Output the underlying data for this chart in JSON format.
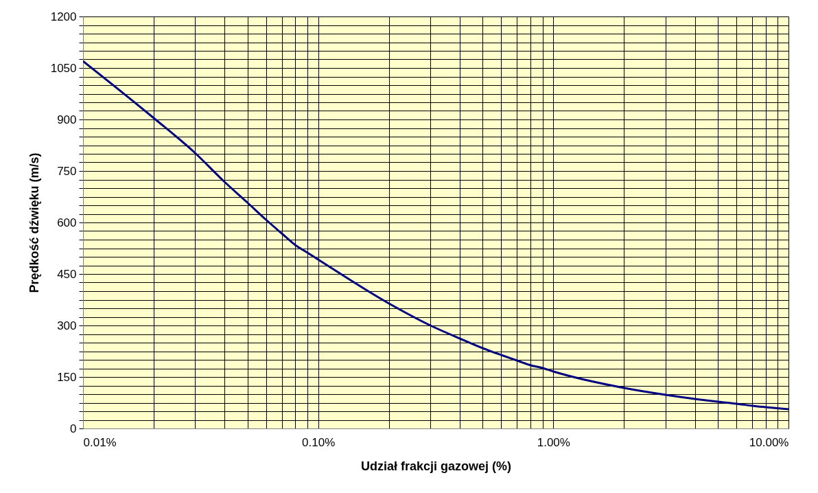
{
  "chart_data": {
    "type": "line",
    "xlabel": "Udział frakcji gazowej (%)",
    "ylabel": "Prędkość dźwięku (m/s)",
    "log": "x",
    "grid": true,
    "legend": false,
    "marker": "none",
    "line_style": "solid",
    "xlim": [
      0.01,
      10
    ],
    "ylim": [
      0,
      1200
    ],
    "xticks": [
      {
        "value": 0.01,
        "label": "0.01%"
      },
      {
        "value": 0.02,
        "label": null
      },
      {
        "value": 0.03,
        "label": null
      },
      {
        "value": 0.04,
        "label": null
      },
      {
        "value": 0.05,
        "label": null
      },
      {
        "value": 0.06,
        "label": null
      },
      {
        "value": 0.07,
        "label": null
      },
      {
        "value": 0.08,
        "label": null
      },
      {
        "value": 0.09,
        "label": null
      },
      {
        "value": 0.1,
        "label": "0.10%"
      },
      {
        "value": 0.2,
        "label": null
      },
      {
        "value": 0.3,
        "label": null
      },
      {
        "value": 0.4,
        "label": null
      },
      {
        "value": 0.5,
        "label": null
      },
      {
        "value": 0.6,
        "label": null
      },
      {
        "value": 0.7,
        "label": null
      },
      {
        "value": 0.8,
        "label": null
      },
      {
        "value": 0.9,
        "label": null
      },
      {
        "value": 1,
        "label": "1.00%"
      },
      {
        "value": 2,
        "label": null
      },
      {
        "value": 3,
        "label": null
      },
      {
        "value": 4,
        "label": null
      },
      {
        "value": 5,
        "label": null
      },
      {
        "value": 6,
        "label": null
      },
      {
        "value": 7,
        "label": null
      },
      {
        "value": 8,
        "label": null
      },
      {
        "value": 9,
        "label": null
      },
      {
        "value": 10,
        "label": "10.00%"
      }
    ],
    "yticks": [
      0,
      {
        "value": 25,
        "label": null
      },
      {
        "value": 50,
        "label": null
      },
      {
        "value": 75,
        "label": null
      },
      {
        "value": 100,
        "label": null
      },
      {
        "value": 125,
        "label": null
      },
      150,
      {
        "value": 175,
        "label": null
      },
      {
        "value": 200,
        "label": null
      },
      {
        "value": 225,
        "label": null
      },
      {
        "value": 250,
        "label": null
      },
      {
        "value": 275,
        "label": null
      },
      300,
      {
        "value": 325,
        "label": null
      },
      {
        "value": 350,
        "label": null
      },
      {
        "value": 375,
        "label": null
      },
      {
        "value": 400,
        "label": null
      },
      {
        "value": 425,
        "label": null
      },
      450,
      {
        "value": 475,
        "label": null
      },
      {
        "value": 500,
        "label": null
      },
      {
        "value": 525,
        "label": null
      },
      {
        "value": 550,
        "label": null
      },
      {
        "value": 575,
        "label": null
      },
      600,
      {
        "value": 625,
        "label": null
      },
      {
        "value": 650,
        "label": null
      },
      {
        "value": 675,
        "label": null
      },
      {
        "value": 700,
        "label": null
      },
      {
        "value": 725,
        "label": null
      },
      750,
      {
        "value": 775,
        "label": null
      },
      {
        "value": 800,
        "label": null
      },
      {
        "value": 825,
        "label": null
      },
      {
        "value": 850,
        "label": null
      },
      {
        "value": 875,
        "label": null
      },
      900,
      {
        "value": 925,
        "label": null
      },
      {
        "value": 950,
        "label": null
      },
      {
        "value": 975,
        "label": null
      },
      {
        "value": 1000,
        "label": null
      },
      {
        "value": 1025,
        "label": null
      },
      1050,
      {
        "value": 1075,
        "label": null
      },
      {
        "value": 1100,
        "label": null
      },
      {
        "value": 1125,
        "label": null
      },
      {
        "value": 1150,
        "label": null
      },
      {
        "value": 1175,
        "label": null
      },
      1200
    ],
    "x": [
      0.01,
      0.02,
      0.03,
      0.04,
      0.05,
      0.06,
      0.07,
      0.08,
      0.09,
      0.1,
      0.2,
      0.3,
      0.4,
      0.5,
      0.6,
      0.7,
      0.8,
      0.9,
      1,
      2,
      3,
      4,
      5,
      6,
      7,
      8,
      10
    ],
    "series": [
      {
        "color": "#000080",
        "values": [
          1070,
          904,
          802,
          718,
          658,
          608,
          568,
          534,
          512,
          492,
          364,
          300,
          262,
          234,
          214,
          198,
          184,
          176,
          166,
          118,
          98,
          86,
          78,
          72,
          66,
          62,
          56
        ]
      }
    ]
  }
}
